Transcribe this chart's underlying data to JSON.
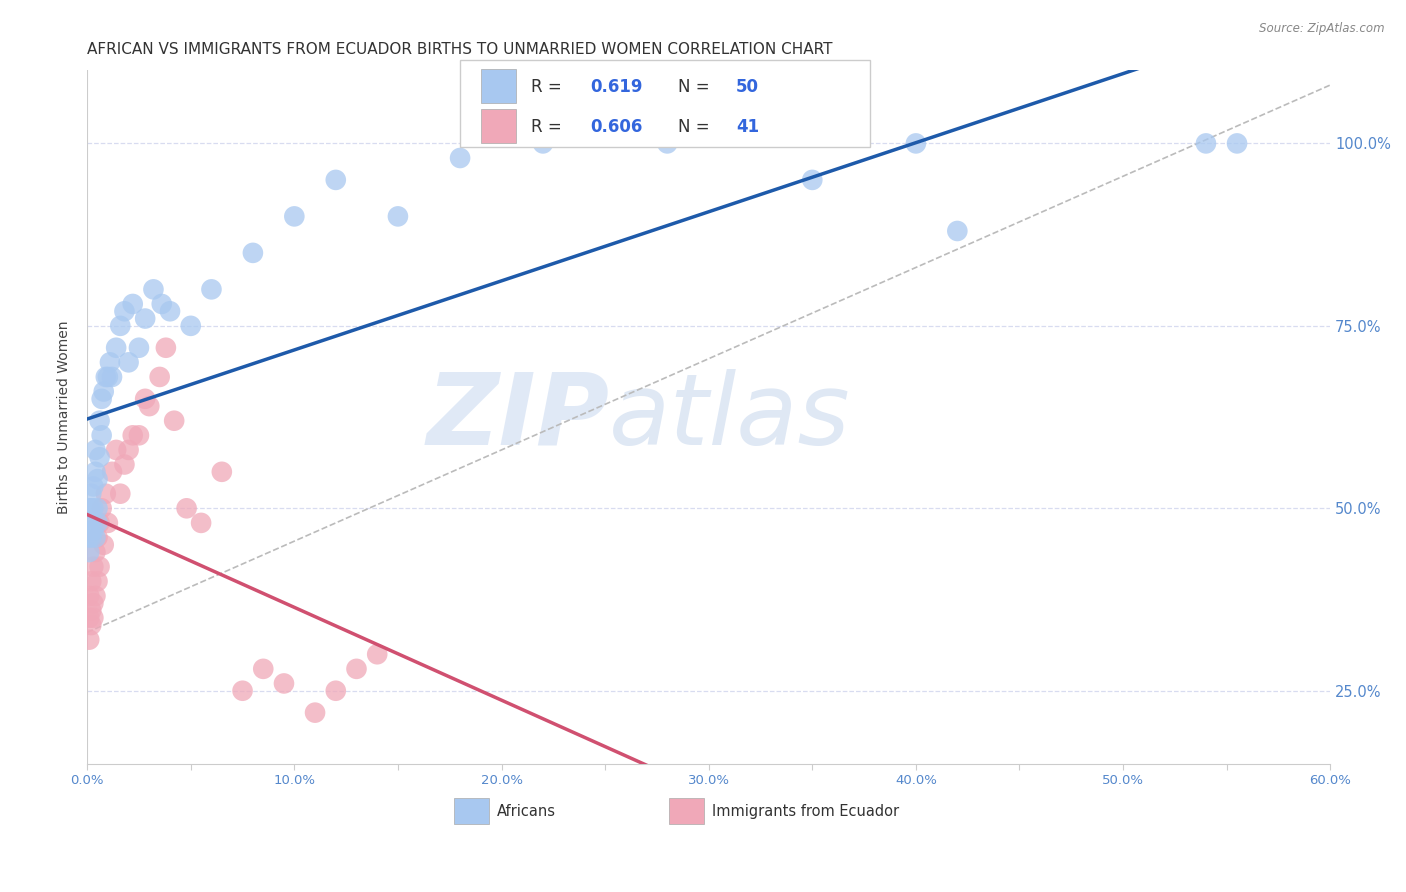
{
  "title": "AFRICAN VS IMMIGRANTS FROM ECUADOR BIRTHS TO UNMARRIED WOMEN CORRELATION CHART",
  "source": "Source: ZipAtlas.com",
  "ylabel": "Births to Unmarried Women",
  "xlim": [
    0.0,
    0.6
  ],
  "ylim": [
    0.15,
    1.1
  ],
  "xtick_labels": [
    "0.0%",
    "",
    "10.0%",
    "",
    "20.0%",
    "",
    "30.0%",
    "",
    "40.0%",
    "",
    "50.0%",
    "",
    "60.0%"
  ],
  "xtick_values": [
    0.0,
    0.05,
    0.1,
    0.15,
    0.2,
    0.25,
    0.3,
    0.35,
    0.4,
    0.45,
    0.5,
    0.55,
    0.6
  ],
  "ytick_labels": [
    "25.0%",
    "50.0%",
    "75.0%",
    "100.0%"
  ],
  "ytick_values": [
    0.25,
    0.5,
    0.75,
    1.0
  ],
  "blue_color": "#A8C8F0",
  "pink_color": "#F0A8B8",
  "blue_edge_color": "#7AAAE0",
  "pink_edge_color": "#E07898",
  "blue_line_color": "#1E5AAA",
  "pink_line_color": "#D05070",
  "blue_R": 0.619,
  "blue_N": 50,
  "pink_R": 0.606,
  "pink_N": 41,
  "background_color": "#FFFFFF",
  "grid_color": "#D8DCF0",
  "watermark_text": "ZIPatlas",
  "africans_x": [
    0.001,
    0.001,
    0.001,
    0.001,
    0.002,
    0.002,
    0.002,
    0.002,
    0.003,
    0.003,
    0.003,
    0.004,
    0.004,
    0.004,
    0.005,
    0.005,
    0.005,
    0.006,
    0.006,
    0.007,
    0.007,
    0.008,
    0.009,
    0.01,
    0.011,
    0.012,
    0.014,
    0.016,
    0.018,
    0.02,
    0.022,
    0.025,
    0.028,
    0.032,
    0.036,
    0.04,
    0.05,
    0.06,
    0.08,
    0.1,
    0.12,
    0.15,
    0.18,
    0.22,
    0.28,
    0.35,
    0.42,
    0.4,
    0.54,
    0.555
  ],
  "africans_y": [
    0.46,
    0.48,
    0.5,
    0.44,
    0.47,
    0.5,
    0.46,
    0.52,
    0.47,
    0.5,
    0.53,
    0.55,
    0.58,
    0.46,
    0.5,
    0.54,
    0.48,
    0.57,
    0.62,
    0.6,
    0.65,
    0.66,
    0.68,
    0.68,
    0.7,
    0.68,
    0.72,
    0.75,
    0.77,
    0.7,
    0.78,
    0.72,
    0.76,
    0.8,
    0.78,
    0.77,
    0.75,
    0.8,
    0.85,
    0.9,
    0.95,
    0.9,
    0.98,
    1.0,
    1.0,
    0.95,
    0.88,
    1.0,
    1.0,
    1.0
  ],
  "ecuador_x": [
    0.001,
    0.001,
    0.001,
    0.002,
    0.002,
    0.002,
    0.003,
    0.003,
    0.003,
    0.004,
    0.004,
    0.005,
    0.005,
    0.006,
    0.006,
    0.007,
    0.008,
    0.009,
    0.01,
    0.012,
    0.014,
    0.016,
    0.018,
    0.02,
    0.022,
    0.025,
    0.028,
    0.03,
    0.035,
    0.038,
    0.042,
    0.048,
    0.055,
    0.065,
    0.075,
    0.085,
    0.095,
    0.11,
    0.12,
    0.13,
    0.14
  ],
  "ecuador_y": [
    0.35,
    0.38,
    0.32,
    0.36,
    0.34,
    0.4,
    0.37,
    0.35,
    0.42,
    0.38,
    0.44,
    0.4,
    0.46,
    0.42,
    0.48,
    0.5,
    0.45,
    0.52,
    0.48,
    0.55,
    0.58,
    0.52,
    0.56,
    0.58,
    0.6,
    0.6,
    0.65,
    0.64,
    0.68,
    0.72,
    0.62,
    0.5,
    0.48,
    0.55,
    0.25,
    0.28,
    0.26,
    0.22,
    0.25,
    0.28,
    0.3
  ],
  "title_fontsize": 11,
  "axis_label_fontsize": 10,
  "tick_fontsize": 9.5,
  "legend_fontsize": 12
}
